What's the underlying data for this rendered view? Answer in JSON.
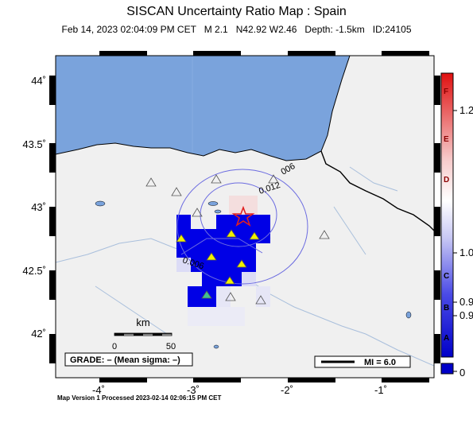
{
  "header": {
    "title": "SISCAN Uncertainty Ratio Map : Spain",
    "subtitle": "Feb 14, 2023 02:04:09 PM CET   M 2.1   N42.92 W2.46   Depth: -1.5km   ID:24105"
  },
  "map": {
    "x_ticks": [
      "-4˚",
      "-3˚",
      "-2˚",
      "-1˚"
    ],
    "y_ticks": [
      "44˚",
      "43.5˚",
      "43˚",
      "42.5˚",
      "42˚"
    ],
    "contour_labels": [
      "006",
      "0.012",
      "0.006"
    ],
    "scalebar": {
      "unit": "km",
      "start": "0",
      "end": "50"
    },
    "grade_box": "GRADE: – (Mean sigma: –)",
    "mi_box": "MI = 6.0",
    "colors": {
      "sea": "#7aa3dc",
      "land": "#f0f0f0",
      "high": "#0000e6",
      "mid": "#5a5ae8",
      "star": "#e02020"
    }
  },
  "colorbar": {
    "letters": [
      "F",
      "E",
      "D",
      "C",
      "B",
      "A"
    ],
    "values": [
      "1.2",
      "1.0",
      "0.9",
      "0.9",
      "0"
    ]
  },
  "footer": {
    "text": "Map Version 1 Processed 2023-02-14 02:06:15 PM CET"
  }
}
